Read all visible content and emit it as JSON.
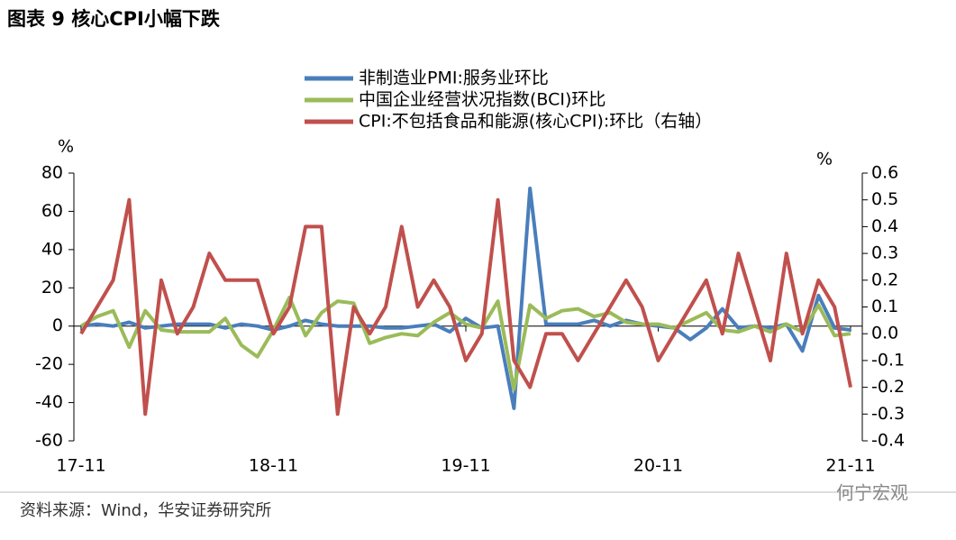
{
  "chart_data": {
    "type": "line",
    "title": "图表 9 核心CPI小幅下跌",
    "source": "资料来源：Wind，华安证券研究所",
    "watermark": "何宁宏观",
    "ylabel": "%",
    "y2label": "%",
    "categories": [
      "17-11",
      null,
      null,
      null,
      null,
      null,
      null,
      null,
      null,
      null,
      null,
      null,
      "18-11",
      null,
      null,
      null,
      null,
      null,
      null,
      null,
      null,
      null,
      null,
      null,
      "19-11",
      null,
      null,
      null,
      null,
      null,
      null,
      null,
      null,
      null,
      null,
      null,
      "20-11",
      null,
      null,
      null,
      null,
      null,
      null,
      null,
      null,
      null,
      null,
      null,
      "21-11"
    ],
    "ylim": [
      -60,
      80
    ],
    "yticks": [
      -60,
      -40,
      -20,
      0,
      20,
      40,
      60,
      80
    ],
    "y2lim": [
      -0.4,
      0.6
    ],
    "y2ticks": [
      -0.4,
      -0.3,
      -0.2,
      -0.1,
      {
        "value": 0,
        "label": "0.0"
      },
      0.1,
      0.2,
      0.3,
      0.4,
      0.5,
      0.6
    ],
    "series": [
      {
        "name": "非制造业PMI:服务业环比",
        "color": "#4a7ebb",
        "values": [
          0,
          1,
          0,
          2,
          -1,
          0,
          1,
          1,
          1,
          -1,
          1,
          0,
          -2,
          0,
          3,
          1,
          0,
          0,
          0,
          -1,
          -1,
          0,
          1,
          -3,
          4,
          -1,
          0,
          -43,
          72,
          1,
          1,
          1,
          3,
          0,
          3,
          1,
          0,
          -1,
          -7,
          -1,
          9,
          -1,
          0,
          -1,
          1,
          -13,
          16,
          -1,
          -2
        ]
      },
      {
        "name": "中国企业经营状况指数(BCI)环比",
        "color": "#9bbb59",
        "values": [
          0,
          5,
          8,
          -11,
          8,
          -2,
          -3,
          -3,
          -3,
          4,
          -10,
          -16,
          -2,
          15,
          -5,
          7,
          13,
          12,
          -9,
          -6,
          -4,
          -5,
          2,
          7,
          1,
          -1,
          13,
          -33,
          11,
          4,
          8,
          9,
          5,
          7,
          2,
          1,
          1,
          -1,
          3,
          7,
          -2,
          -3,
          0,
          -3,
          1,
          -3,
          11,
          -5,
          -4
        ]
      },
      {
        "name": "CPI:不包括食品和能源(核心CPI):环比（右轴）",
        "color": "#c0504d",
        "axis": "y2",
        "values": [
          0,
          0.1,
          0.2,
          0.5,
          -0.3,
          0.2,
          0,
          0.1,
          0.3,
          0.2,
          0.2,
          0.2,
          0,
          0.1,
          0.4,
          0.4,
          -0.3,
          0.1,
          0,
          0.1,
          0.4,
          0.1,
          0.2,
          0.1,
          -0.1,
          0,
          0.5,
          -0.1,
          -0.2,
          0,
          0,
          -0.1,
          0,
          0.1,
          0.2,
          0.1,
          -0.1,
          0,
          0.1,
          0.2,
          0,
          0.3,
          0.1,
          -0.1,
          0.3,
          0,
          0.2,
          0.1,
          -0.2
        ]
      }
    ]
  }
}
